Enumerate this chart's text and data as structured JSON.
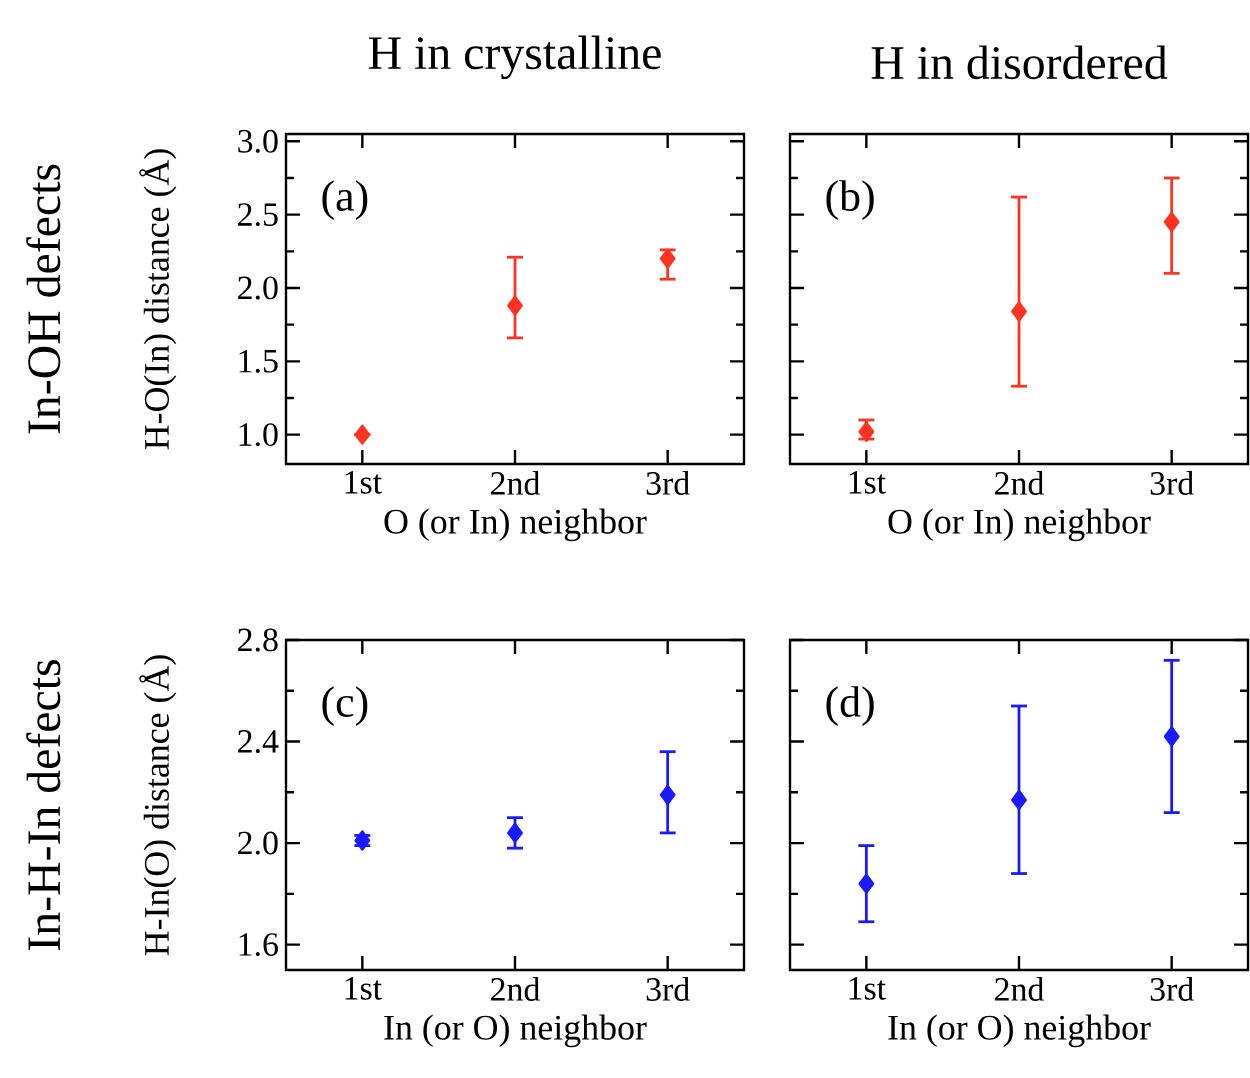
{
  "chart_data": [
    {
      "type": "scatter",
      "title": "H in crystalline",
      "xlabel": "O (or In) neighbor",
      "ylabel": "H-O(In) distance (Å)",
      "annotations": [
        "(a)",
        "In-OH defects"
      ],
      "categories": [
        "1st",
        "2nd",
        "3rd"
      ],
      "marker": "diamond",
      "series": [
        {
          "color": "#ff3322",
          "values": [
            1.0,
            1.88,
            2.2
          ],
          "errors": [
            null,
            [
              1.66,
              2.21
            ],
            [
              2.06,
              2.26
            ]
          ]
        }
      ],
      "ylim": [
        0.8,
        3.05
      ],
      "yticks": [
        {
          "value": 1.0,
          "label": "1.0"
        },
        {
          "value": 1.25,
          "label": null
        },
        {
          "value": 1.5,
          "label": "1.5"
        },
        {
          "value": 1.75,
          "label": null
        },
        {
          "value": 2.0,
          "label": "2.0"
        },
        {
          "value": 2.25,
          "label": null
        },
        {
          "value": 2.5,
          "label": "2.5"
        },
        {
          "value": 2.75,
          "label": null
        },
        {
          "value": 3.0,
          "label": "3.0"
        }
      ]
    },
    {
      "type": "scatter",
      "title": "H in disordered",
      "xlabel": "O (or In) neighbor",
      "annotations": [
        "(b)"
      ],
      "categories": [
        "1st",
        "2nd",
        "3rd"
      ],
      "marker": "diamond",
      "tick_labels": "x",
      "series": [
        {
          "color": "#ff3322",
          "values": [
            1.02,
            1.84,
            2.45
          ],
          "errors": [
            [
              0.97,
              1.1
            ],
            [
              1.33,
              2.62
            ],
            [
              2.1,
              2.75
            ]
          ]
        }
      ],
      "ylim": [
        0.8,
        3.05
      ],
      "yticks": [
        1.0,
        {
          "value": 1.25,
          "label": null
        },
        1.5,
        {
          "value": 1.75,
          "label": null
        },
        2.0,
        {
          "value": 2.25,
          "label": null
        },
        2.5,
        {
          "value": 2.75,
          "label": null
        },
        3.0
      ]
    },
    {
      "type": "scatter",
      "xlabel": "In (or O) neighbor",
      "ylabel": "H-In(O) distance (Å)",
      "annotations": [
        "(c)",
        "In-H-In defects"
      ],
      "categories": [
        "1st",
        "2nd",
        "3rd"
      ],
      "marker": "diamond",
      "series": [
        {
          "color": "#1a1aff",
          "values": [
            2.01,
            2.04,
            2.19
          ],
          "errors": [
            [
              1.99,
              2.03
            ],
            [
              1.98,
              2.1
            ],
            [
              2.04,
              2.36
            ]
          ]
        }
      ],
      "ylim": [
        1.5,
        2.8
      ],
      "yticks": [
        {
          "value": 1.6,
          "label": "1.6"
        },
        {
          "value": 1.8,
          "label": null
        },
        {
          "value": 2.0,
          "label": "2.0"
        },
        {
          "value": 2.2,
          "label": null
        },
        {
          "value": 2.4,
          "label": "2.4"
        },
        {
          "value": 2.6,
          "label": null
        },
        {
          "value": 2.8,
          "label": "2.8"
        }
      ]
    },
    {
      "type": "scatter",
      "xlabel": "In (or O) neighbor",
      "annotations": [
        "(d)"
      ],
      "categories": [
        "1st",
        "2nd",
        "3rd"
      ],
      "marker": "diamond",
      "tick_labels": "x",
      "series": [
        {
          "color": "#1a1aff",
          "values": [
            1.84,
            2.17,
            2.42
          ],
          "errors": [
            [
              1.69,
              1.99
            ],
            [
              1.88,
              2.54
            ],
            [
              2.12,
              2.72
            ]
          ]
        }
      ],
      "ylim": [
        1.5,
        2.8
      ],
      "yticks": [
        1.6,
        {
          "value": 1.8,
          "label": null
        },
        2.0,
        {
          "value": 2.2,
          "label": null
        },
        2.4,
        {
          "value": 2.6,
          "label": null
        },
        2.8
      ]
    }
  ]
}
